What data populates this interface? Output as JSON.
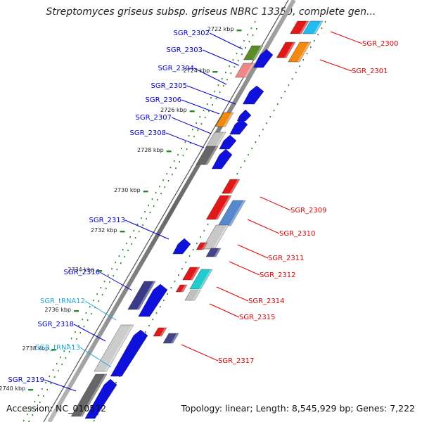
{
  "title": "Streptomyces griseus subsp. griseus NBRC 13350, complete gen...",
  "footer": {
    "accession": "Accession: NC_010572",
    "summary": "Topology: linear; Length: 8,545,929 bp; Genes: 7,222"
  },
  "colors": {
    "left_label": "#0000cc",
    "right_label": "#dd0000",
    "trna_label": "#22aadd",
    "ruler_dots": "#2a8a2a",
    "backbone": "#888888"
  },
  "kbp_ticks": [
    "2722 kbp",
    "2724 kbp",
    "2726 kbp",
    "2728 kbp",
    "2730 kbp",
    "2732 kbp",
    "2734 kbp",
    "2736 kbp",
    "2738 kbp",
    "2740 kbp"
  ],
  "genes_left": [
    "SGR_2302",
    "SGR_2303",
    "SGR_2304",
    "SGR_2305",
    "SGR_2306",
    "SGR_2307",
    "SGR_2308",
    "SGR_2313",
    "SGR_2316",
    "SGR_tRNA12",
    "SGR_2318",
    "SGR_tRNA13",
    "SGR_2319"
  ],
  "genes_right": [
    "SGR_2300",
    "SGR_2301",
    "SGR_2309",
    "SGR_2310",
    "SGR_2311",
    "SGR_2312",
    "SGR_2314",
    "SGR_2315",
    "SGR_2317"
  ]
}
